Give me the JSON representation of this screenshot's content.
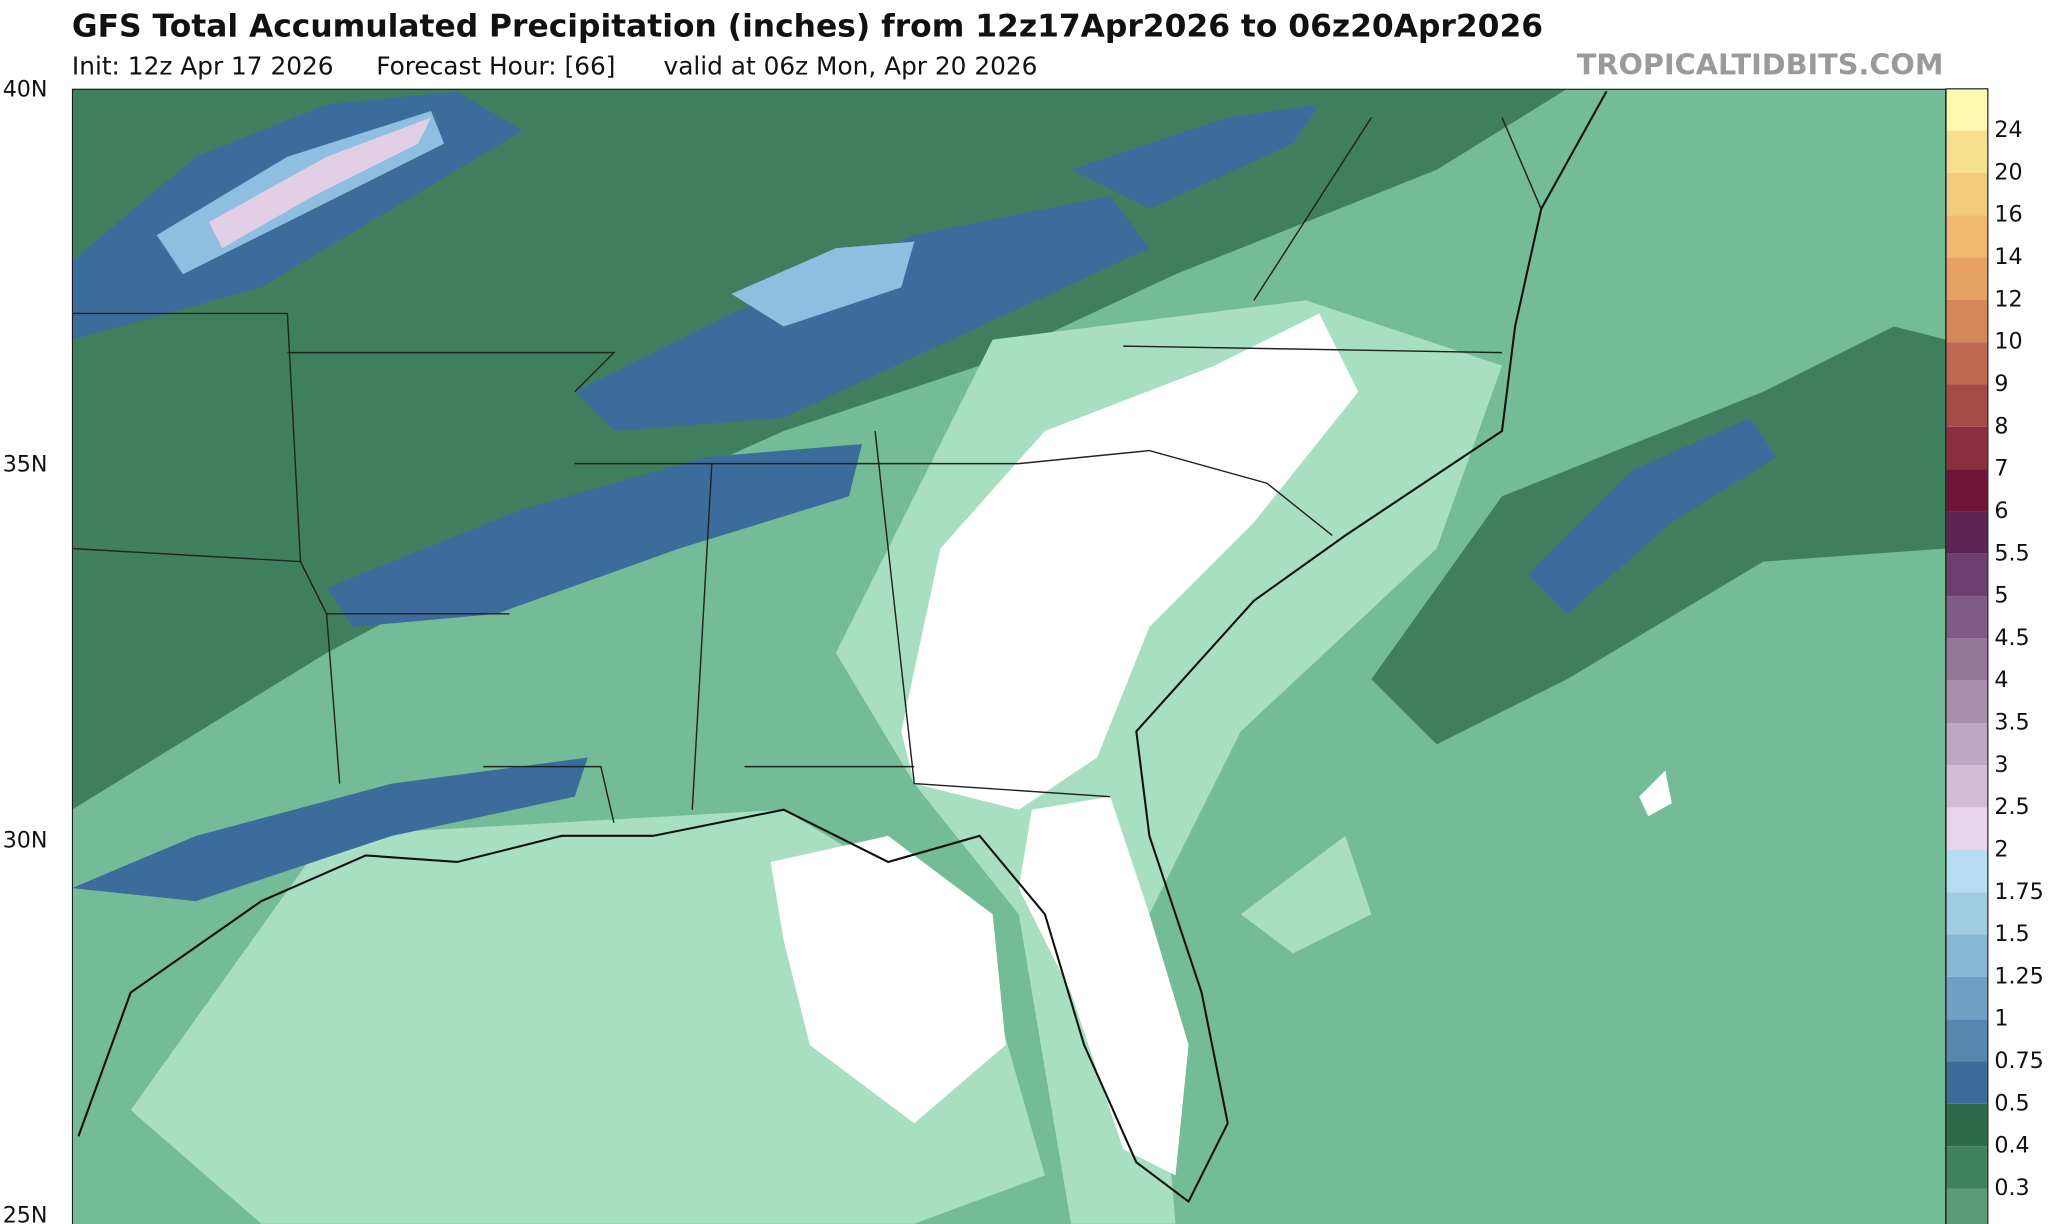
{
  "header": {
    "title": "GFS Total Accumulated Precipitation (inches) from 12z17Apr2026 to 06z20Apr2026",
    "init": "Init: 12z Apr 17 2026",
    "forecast_hour": "Forecast Hour: [66]",
    "valid": "valid at 06z Mon, Apr 20 2026",
    "watermark": "TROPICALTIDBITS.COM"
  },
  "map": {
    "latitude_labels": [
      "40N",
      "35N",
      "30N",
      "25N"
    ]
  },
  "colorbar": {
    "levels": [
      {
        "label": "24",
        "color": "#f5de8c"
      },
      {
        "label": "20",
        "color": "#f2cb7b"
      },
      {
        "label": "16",
        "color": "#efb86d"
      },
      {
        "label": "14",
        "color": "#e6a163"
      },
      {
        "label": "12",
        "color": "#d5875a"
      },
      {
        "label": "10",
        "color": "#bf6a50"
      },
      {
        "label": "9",
        "color": "#a54b47"
      },
      {
        "label": "8",
        "color": "#8b2e3f"
      },
      {
        "label": "7",
        "color": "#6f1436"
      },
      {
        "label": "6",
        "color": "#5c2452"
      },
      {
        "label": "5.5",
        "color": "#6d3e6e"
      },
      {
        "label": "5",
        "color": "#7f5b85"
      },
      {
        "label": "4.5",
        "color": "#947698"
      },
      {
        "label": "4",
        "color": "#a98fad"
      },
      {
        "label": "3.5",
        "color": "#bea7c4"
      },
      {
        "label": "3",
        "color": "#d2bdd8"
      },
      {
        "label": "2.5",
        "color": "#e4d5ea"
      },
      {
        "label": "2",
        "color": "#b7ddf0"
      },
      {
        "label": "1.75",
        "color": "#9fcbe3"
      },
      {
        "label": "1.5",
        "color": "#88b7d4"
      },
      {
        "label": "1.25",
        "color": "#709fc3"
      },
      {
        "label": "1",
        "color": "#5787b1"
      },
      {
        "label": "0.75",
        "color": "#3c6c9b"
      },
      {
        "label": "0.5",
        "color": "#2d6a4b"
      },
      {
        "label": "0.4",
        "color": "#3f825f"
      },
      {
        "label": "0.3",
        "color": "#5a9b78"
      }
    ]
  }
}
